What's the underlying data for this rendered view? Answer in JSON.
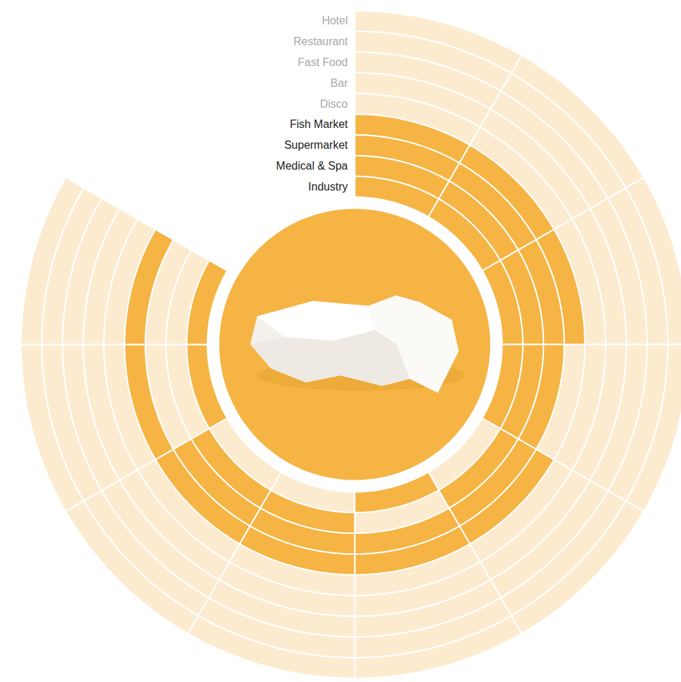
{
  "chart_data": {
    "type": "radial_heatmap",
    "categories": [
      "Hotel",
      "Restaurant",
      "Fast Food",
      "Bar",
      "Disco",
      "Fish Market",
      "Supermarket",
      "Medical & Spa",
      "Industry"
    ],
    "color": "#f5b443",
    "cells": [
      [
        0,
        0,
        0,
        0,
        0,
        0,
        0,
        0,
        0,
        0
      ],
      [
        0,
        0,
        0,
        0,
        0,
        0,
        0,
        0,
        0,
        0
      ],
      [
        0,
        0,
        0,
        0,
        0,
        0,
        0,
        0,
        0,
        0
      ],
      [
        0,
        0,
        0,
        0,
        0,
        0,
        0,
        0,
        0,
        0
      ],
      [
        0,
        0,
        0,
        0,
        0,
        0,
        0,
        0,
        0,
        0
      ],
      [
        1,
        1,
        1,
        0,
        1,
        1,
        1,
        1,
        1,
        1
      ],
      [
        1,
        1,
        1,
        1,
        1,
        1,
        1,
        1,
        0,
        0
      ],
      [
        1,
        1,
        1,
        1,
        1,
        0,
        1,
        1,
        0,
        0
      ],
      [
        1,
        1,
        1,
        1,
        0,
        1,
        0,
        0,
        1,
        1
      ]
    ]
  }
}
